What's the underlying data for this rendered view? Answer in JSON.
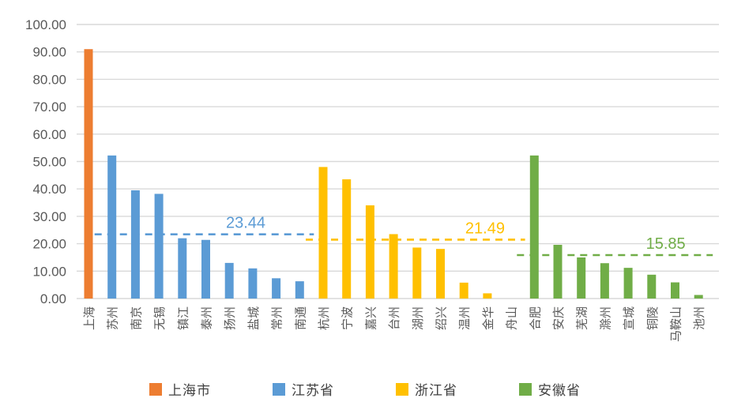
{
  "chart_data": {
    "type": "bar",
    "title": "",
    "xlabel": "",
    "ylabel": "",
    "ylim": [
      0,
      100
    ],
    "ytick_step": 10,
    "ytick_labels": [
      "0.00",
      "10.00",
      "20.00",
      "30.00",
      "40.00",
      "50.00",
      "60.00",
      "70.00",
      "80.00",
      "90.00",
      "100.00"
    ],
    "grid": true,
    "legend_position": "bottom",
    "series": [
      {
        "name": "上海市",
        "color": "#ED7D31",
        "cities": [
          "上海"
        ],
        "values": [
          91.0
        ]
      },
      {
        "name": "江苏省",
        "color": "#5B9BD5",
        "cities": [
          "苏州",
          "南京",
          "无锡",
          "镇江",
          "泰州",
          "扬州",
          "盐城",
          "常州",
          "南通"
        ],
        "values": [
          52.2,
          39.5,
          38.2,
          22.0,
          21.4,
          13.0,
          11.0,
          7.4,
          6.3
        ],
        "average": 23.44,
        "average_label": "23.44"
      },
      {
        "name": "浙江省",
        "color": "#FFC000",
        "cities": [
          "杭州",
          "宁波",
          "嘉兴",
          "台州",
          "湖州",
          "绍兴",
          "温州",
          "金华",
          "舟山"
        ],
        "values": [
          48.0,
          43.5,
          34.0,
          23.5,
          18.6,
          18.1,
          5.8,
          1.9,
          0.0
        ],
        "average": 21.49,
        "average_label": "21.49"
      },
      {
        "name": "安徽省",
        "color": "#70AD47",
        "cities": [
          "合肥",
          "安庆",
          "芜湖",
          "滁州",
          "宣城",
          "铜陵",
          "马鞍山",
          "池州"
        ],
        "values": [
          52.2,
          19.6,
          15.0,
          12.9,
          11.2,
          8.7,
          5.9,
          1.3
        ],
        "average": 15.85,
        "average_label": "15.85"
      }
    ],
    "colors": {
      "grid": "#D9D9D9",
      "axis_text": "#595959",
      "legend_text": "#404040",
      "background": "#FFFFFF"
    }
  }
}
